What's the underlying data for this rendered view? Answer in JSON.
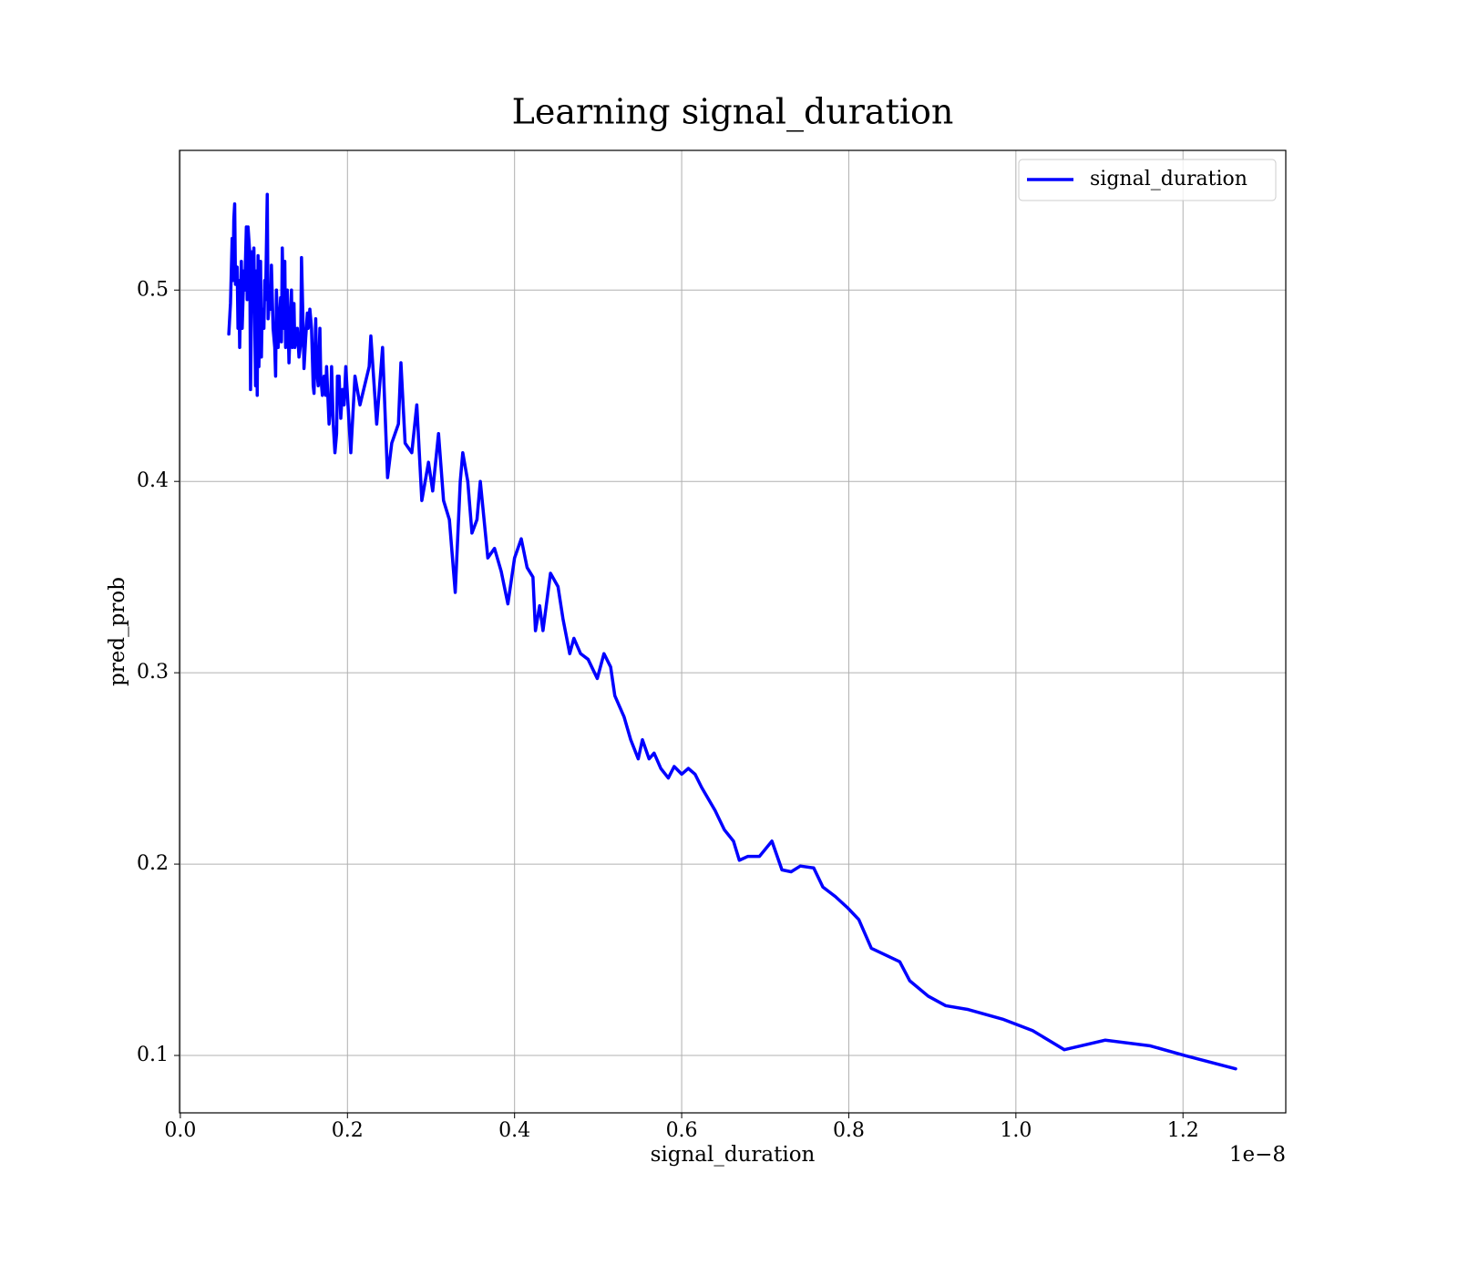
{
  "chart_data": {
    "type": "line",
    "title": "Learning signal_duration",
    "x_label": "signal_duration",
    "y_label": "pred_prob",
    "x_offset_label": "1e−8",
    "grid": true,
    "legend_loc": "upper right",
    "xlim": [
      -0.001,
      1.323
    ],
    "ylim": [
      0.07,
      0.573
    ],
    "xticks": [
      {
        "value": 0,
        "label": "0.0"
      },
      0.2,
      0.4,
      0.6,
      0.8,
      {
        "value": 1,
        "label": "1.0"
      },
      1.2
    ],
    "yticks": [
      0.1,
      0.2,
      0.3,
      0.4,
      0.5
    ],
    "x": [
      0.058,
      0.06,
      0.062,
      0.063,
      0.064,
      0.065,
      0.066,
      0.068,
      0.069,
      0.07,
      0.071,
      0.073,
      0.074,
      0.076,
      0.077,
      0.079,
      0.08,
      0.081,
      0.083,
      0.084,
      0.086,
      0.087,
      0.088,
      0.09,
      0.091,
      0.092,
      0.093,
      0.094,
      0.096,
      0.097,
      0.098,
      0.1,
      0.101,
      0.102,
      0.104,
      0.105,
      0.107,
      0.108,
      0.109,
      0.111,
      0.113,
      0.114,
      0.115,
      0.117,
      0.118,
      0.12,
      0.121,
      0.122,
      0.124,
      0.125,
      0.126,
      0.128,
      0.13,
      0.131,
      0.133,
      0.134,
      0.136,
      0.137,
      0.139,
      0.14,
      0.142,
      0.144,
      0.145,
      0.147,
      0.148,
      0.15,
      0.152,
      0.153,
      0.155,
      0.157,
      0.159,
      0.16,
      0.162,
      0.163,
      0.165,
      0.167,
      0.168,
      0.17,
      0.172,
      0.174,
      0.175,
      0.177,
      0.178,
      0.18,
      0.181,
      0.183,
      0.185,
      0.187,
      0.188,
      0.19,
      0.192,
      0.194,
      0.196,
      0.198,
      0.204,
      0.209,
      0.215,
      0.226,
      0.228,
      0.235,
      0.242,
      0.248,
      0.253,
      0.261,
      0.264,
      0.269,
      0.277,
      0.283,
      0.289,
      0.297,
      0.302,
      0.309,
      0.315,
      0.322,
      0.329,
      0.335,
      0.338,
      0.344,
      0.349,
      0.355,
      0.359,
      0.368,
      0.376,
      0.384,
      0.392,
      0.4,
      0.408,
      0.415,
      0.422,
      0.425,
      0.43,
      0.434,
      0.443,
      0.452,
      0.458,
      0.466,
      0.471,
      0.479,
      0.488,
      0.499,
      0.507,
      0.515,
      0.52,
      0.531,
      0.539,
      0.548,
      0.553,
      0.561,
      0.567,
      0.575,
      0.584,
      0.591,
      0.6,
      0.608,
      0.616,
      0.624,
      0.64,
      0.651,
      0.662,
      0.669,
      0.679,
      0.693,
      0.708,
      0.72,
      0.731,
      0.742,
      0.758,
      0.769,
      0.784,
      0.799,
      0.812,
      0.827,
      0.861,
      0.873,
      0.895,
      0.916,
      0.943,
      0.984,
      1.02,
      1.058,
      1.107,
      1.161,
      1.202,
      1.263
    ],
    "series": [
      {
        "name": "signal_duration",
        "color": "#0000ff",
        "line_width": 3.5,
        "values": [
          0.477,
          0.493,
          0.527,
          0.505,
          0.537,
          0.545,
          0.503,
          0.512,
          0.48,
          0.505,
          0.47,
          0.515,
          0.48,
          0.51,
          0.5,
          0.533,
          0.495,
          0.533,
          0.52,
          0.448,
          0.52,
          0.49,
          0.522,
          0.45,
          0.51,
          0.445,
          0.518,
          0.46,
          0.515,
          0.465,
          0.49,
          0.48,
          0.505,
          0.495,
          0.55,
          0.485,
          0.5,
          0.49,
          0.513,
          0.48,
          0.47,
          0.455,
          0.5,
          0.47,
          0.478,
          0.496,
          0.473,
          0.522,
          0.48,
          0.515,
          0.47,
          0.5,
          0.462,
          0.475,
          0.5,
          0.47,
          0.493,
          0.47,
          0.475,
          0.48,
          0.465,
          0.472,
          0.517,
          0.48,
          0.459,
          0.475,
          0.488,
          0.48,
          0.49,
          0.48,
          0.45,
          0.446,
          0.485,
          0.46,
          0.45,
          0.48,
          0.455,
          0.445,
          0.455,
          0.445,
          0.46,
          0.44,
          0.43,
          0.44,
          0.46,
          0.43,
          0.415,
          0.425,
          0.455,
          0.455,
          0.433,
          0.448,
          0.44,
          0.46,
          0.415,
          0.455,
          0.44,
          0.46,
          0.476,
          0.43,
          0.47,
          0.402,
          0.42,
          0.43,
          0.462,
          0.42,
          0.415,
          0.44,
          0.39,
          0.41,
          0.395,
          0.425,
          0.39,
          0.38,
          0.342,
          0.4,
          0.415,
          0.4,
          0.373,
          0.38,
          0.4,
          0.36,
          0.365,
          0.353,
          0.336,
          0.36,
          0.37,
          0.355,
          0.35,
          0.322,
          0.335,
          0.322,
          0.352,
          0.345,
          0.328,
          0.31,
          0.318,
          0.31,
          0.307,
          0.297,
          0.31,
          0.303,
          0.288,
          0.277,
          0.265,
          0.255,
          0.265,
          0.255,
          0.258,
          0.25,
          0.245,
          0.251,
          0.247,
          0.25,
          0.247,
          0.24,
          0.228,
          0.218,
          0.212,
          0.202,
          0.204,
          0.204,
          0.212,
          0.197,
          0.196,
          0.199,
          0.198,
          0.188,
          0.183,
          0.177,
          0.171,
          0.156,
          0.149,
          0.139,
          0.131,
          0.126,
          0.124,
          0.119,
          0.113,
          0.103,
          0.108,
          0.105,
          0.1,
          0.093
        ]
      }
    ]
  }
}
